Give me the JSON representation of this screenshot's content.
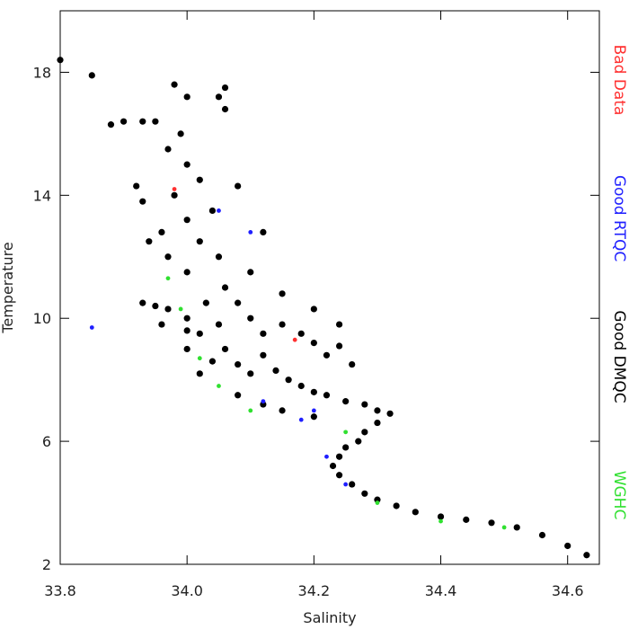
{
  "chart_data": {
    "type": "scatter",
    "x_label": "Salinity",
    "y_label": "Temperature",
    "xlim": [
      33.8,
      34.65
    ],
    "ylim": [
      2,
      20
    ],
    "xticks": [
      {
        "value": 33.8,
        "label": "33.8"
      },
      {
        "value": 34.0,
        "label": "34.0"
      },
      {
        "value": 34.2,
        "label": "34.2"
      },
      {
        "value": 34.4,
        "label": "34.4"
      },
      {
        "value": 34.6,
        "label": "34.6"
      }
    ],
    "yticks": [
      2,
      6,
      10,
      14,
      18
    ],
    "legend": "right",
    "series": [
      {
        "name": "Bad Data",
        "color": "#ff3030",
        "x": [
          33.98,
          34.17
        ],
        "values": [
          14.2,
          9.3
        ]
      },
      {
        "name": "Good RTQC",
        "color": "#1f1fff",
        "x": [
          33.85,
          34.05,
          34.1,
          34.2,
          34.22,
          34.25,
          34.12,
          34.18
        ],
        "values": [
          9.7,
          13.5,
          12.8,
          7.0,
          5.5,
          4.6,
          7.3,
          6.7
        ]
      },
      {
        "name": "Good DMQC",
        "color": "#000000",
        "x": [
          33.8,
          33.85,
          33.88,
          33.9,
          33.93,
          33.95,
          33.98,
          34.0,
          34.05,
          34.06,
          34.06,
          34.08,
          34.12,
          33.92,
          33.93,
          33.94,
          33.93,
          33.95,
          33.97,
          33.97,
          33.99,
          34.0,
          34.02,
          33.98,
          34.0,
          33.96,
          33.97,
          34.0,
          34.02,
          34.04,
          34.05,
          34.06,
          34.03,
          34.0,
          34.02,
          34.05,
          34.08,
          34.1,
          34.12,
          34.15,
          34.18,
          34.2,
          34.22,
          34.24,
          34.26,
          34.06,
          34.08,
          34.1,
          34.12,
          34.14,
          34.16,
          34.18,
          34.2,
          34.22,
          34.25,
          34.28,
          34.3,
          34.32,
          34.3,
          34.28,
          34.27,
          34.25,
          34.24,
          34.23,
          34.24,
          34.26,
          34.28,
          34.3,
          34.33,
          34.36,
          34.4,
          34.44,
          34.48,
          34.52,
          34.56,
          34.6,
          34.63,
          34.04,
          34.02,
          34.0,
          33.96,
          34.08,
          34.12,
          34.15,
          34.2,
          34.1,
          34.15,
          34.2,
          34.24,
          34.0
        ],
        "values": [
          18.4,
          17.9,
          16.3,
          16.4,
          16.4,
          16.4,
          17.6,
          17.2,
          17.2,
          17.5,
          16.8,
          14.3,
          12.8,
          14.3,
          13.8,
          12.5,
          10.5,
          10.4,
          10.3,
          15.5,
          16,
          15,
          14.5,
          14,
          13.2,
          12.8,
          12,
          11.5,
          12.5,
          13.5,
          12,
          11,
          10.5,
          10,
          9.5,
          9.8,
          10.5,
          10,
          9.5,
          9.8,
          9.5,
          9.2,
          8.8,
          9.1,
          8.5,
          9,
          8.5,
          8.2,
          8.8,
          8.3,
          8,
          7.8,
          7.6,
          7.5,
          7.3,
          7.2,
          7.0,
          6.9,
          6.6,
          6.3,
          6.0,
          5.8,
          5.5,
          5.2,
          4.9,
          4.6,
          4.3,
          4.1,
          3.9,
          3.7,
          3.55,
          3.45,
          3.35,
          3.2,
          2.95,
          2.6,
          2.3,
          8.6,
          8.2,
          9.0,
          9.8,
          7.5,
          7.2,
          7.0,
          6.8,
          11.5,
          10.8,
          10.3,
          9.8,
          9.6
        ]
      },
      {
        "name": "WGHC",
        "color": "#30e030",
        "x": [
          33.97,
          33.99,
          34.02,
          34.05,
          34.1,
          34.25,
          34.3,
          34.4,
          34.5
        ],
        "values": [
          11.3,
          10.3,
          8.7,
          7.8,
          7.0,
          6.3,
          4.0,
          3.4,
          3.2
        ]
      }
    ]
  }
}
